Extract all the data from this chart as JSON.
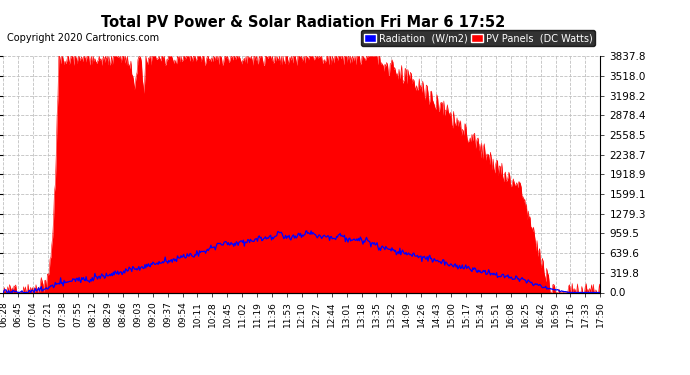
{
  "title": "Total PV Power & Solar Radiation Fri Mar 6 17:52",
  "copyright": "Copyright 2020 Cartronics.com",
  "y_ticks": [
    0.0,
    319.8,
    639.6,
    959.5,
    1279.3,
    1599.1,
    1918.9,
    2238.7,
    2558.5,
    2878.4,
    3198.2,
    3518.0,
    3837.8
  ],
  "x_labels": [
    "06:28",
    "06:45",
    "07:04",
    "07:21",
    "07:38",
    "07:55",
    "08:12",
    "08:29",
    "08:46",
    "09:03",
    "09:20",
    "09:37",
    "09:54",
    "10:11",
    "10:28",
    "10:45",
    "11:02",
    "11:19",
    "11:36",
    "11:53",
    "12:10",
    "12:27",
    "12:44",
    "13:01",
    "13:18",
    "13:35",
    "13:52",
    "14:09",
    "14:26",
    "14:43",
    "15:00",
    "15:17",
    "15:34",
    "15:51",
    "16:08",
    "16:25",
    "16:42",
    "16:59",
    "17:16",
    "17:33",
    "17:50"
  ],
  "background_color": "#ffffff",
  "plot_bg_color": "#ffffff",
  "grid_color": "#c0c0c0",
  "red_color": "#ff0000",
  "blue_color": "#0000ff",
  "title_color": "#000000",
  "legend_radiation_bg": "#0000ff",
  "legend_pv_bg": "#ff0000",
  "ymax": 3837.8,
  "ymin": 0.0
}
